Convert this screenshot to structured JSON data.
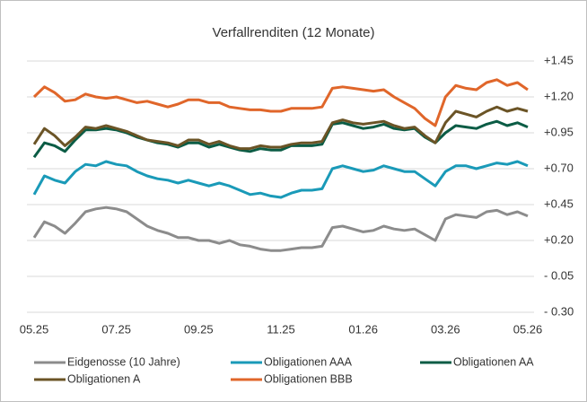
{
  "chart_data": {
    "type": "line",
    "title": "Verfallrenditen (12 Monate)",
    "categories": [
      "05.25",
      null,
      null,
      null,
      null,
      null,
      null,
      null,
      "07.25",
      null,
      null,
      null,
      null,
      null,
      null,
      null,
      "09.25",
      null,
      null,
      null,
      null,
      null,
      null,
      null,
      "11.25",
      null,
      null,
      null,
      null,
      null,
      null,
      null,
      "01.26",
      null,
      null,
      null,
      null,
      null,
      null,
      null,
      "03.26",
      null,
      null,
      null,
      null,
      null,
      null,
      null,
      "05.26"
    ],
    "series": [
      {
        "name": "Eidgenosse (10 Jahre)",
        "color": "#8c8c8c",
        "values": [
          0.22,
          0.33,
          0.3,
          0.25,
          0.32,
          0.4,
          0.42,
          0.43,
          0.42,
          0.4,
          0.35,
          0.3,
          0.27,
          0.25,
          0.22,
          0.22,
          0.2,
          0.2,
          0.18,
          0.2,
          0.17,
          0.16,
          0.14,
          0.13,
          0.13,
          0.14,
          0.15,
          0.15,
          0.16,
          0.29,
          0.3,
          0.28,
          0.26,
          0.27,
          0.3,
          0.28,
          0.27,
          0.28,
          0.24,
          0.2,
          0.35,
          0.38,
          0.37,
          0.36,
          0.4,
          0.41,
          0.38,
          0.4,
          0.37
        ]
      },
      {
        "name": "Obligationen AAA",
        "color": "#1a9ab8",
        "values": [
          0.52,
          0.65,
          0.62,
          0.6,
          0.68,
          0.73,
          0.72,
          0.75,
          0.73,
          0.72,
          0.68,
          0.65,
          0.63,
          0.62,
          0.6,
          0.62,
          0.6,
          0.58,
          0.6,
          0.58,
          0.55,
          0.52,
          0.53,
          0.51,
          0.5,
          0.53,
          0.55,
          0.55,
          0.56,
          0.7,
          0.72,
          0.7,
          0.68,
          0.69,
          0.72,
          0.7,
          0.68,
          0.68,
          0.63,
          0.58,
          0.68,
          0.72,
          0.72,
          0.7,
          0.72,
          0.74,
          0.73,
          0.75,
          0.72
        ]
      },
      {
        "name": "Obligationen AA",
        "color": "#0b5c45",
        "values": [
          0.78,
          0.88,
          0.86,
          0.82,
          0.9,
          0.97,
          0.97,
          0.98,
          0.97,
          0.95,
          0.92,
          0.9,
          0.88,
          0.87,
          0.85,
          0.88,
          0.88,
          0.85,
          0.87,
          0.85,
          0.83,
          0.82,
          0.84,
          0.83,
          0.83,
          0.86,
          0.86,
          0.86,
          0.87,
          1.01,
          1.02,
          1.0,
          0.98,
          0.99,
          1.01,
          0.98,
          0.97,
          0.98,
          0.92,
          0.88,
          0.95,
          1.0,
          0.99,
          0.98,
          1.01,
          1.03,
          1.0,
          1.02,
          0.99
        ]
      },
      {
        "name": "Obligationen A",
        "color": "#6b5426",
        "values": [
          0.87,
          0.98,
          0.93,
          0.86,
          0.92,
          0.99,
          0.98,
          1.0,
          0.98,
          0.96,
          0.93,
          0.9,
          0.89,
          0.88,
          0.86,
          0.9,
          0.9,
          0.87,
          0.89,
          0.86,
          0.84,
          0.84,
          0.86,
          0.85,
          0.85,
          0.87,
          0.88,
          0.88,
          0.89,
          1.02,
          1.04,
          1.02,
          1.01,
          1.02,
          1.03,
          1.0,
          0.98,
          0.99,
          0.93,
          0.88,
          1.02,
          1.1,
          1.08,
          1.06,
          1.1,
          1.13,
          1.1,
          1.12,
          1.1
        ]
      },
      {
        "name": "Obligationen BBB",
        "color": "#e0662a",
        "values": [
          1.2,
          1.27,
          1.23,
          1.17,
          1.18,
          1.22,
          1.2,
          1.19,
          1.2,
          1.18,
          1.16,
          1.17,
          1.15,
          1.13,
          1.15,
          1.18,
          1.18,
          1.16,
          1.16,
          1.13,
          1.12,
          1.11,
          1.11,
          1.1,
          1.1,
          1.12,
          1.12,
          1.12,
          1.13,
          1.26,
          1.27,
          1.26,
          1.25,
          1.24,
          1.25,
          1.2,
          1.16,
          1.12,
          1.05,
          1.0,
          1.2,
          1.28,
          1.26,
          1.25,
          1.3,
          1.32,
          1.28,
          1.3,
          1.25
        ]
      }
    ],
    "ylim": [
      -0.3,
      1.45
    ],
    "yticks": [
      {
        "value": 1.45,
        "label": "+1.45"
      },
      {
        "value": 1.2,
        "label": "+1.20"
      },
      {
        "value": 0.95,
        "label": "+0.95"
      },
      {
        "value": 0.7,
        "label": "+0.70"
      },
      {
        "value": 0.45,
        "label": "+0.45"
      },
      {
        "value": 0.2,
        "label": "+0.20"
      },
      {
        "value": -0.05,
        "label": "- 0.05"
      },
      {
        "value": -0.3,
        "label": "- 0.30"
      }
    ],
    "grid": true,
    "legend": "bottom"
  }
}
